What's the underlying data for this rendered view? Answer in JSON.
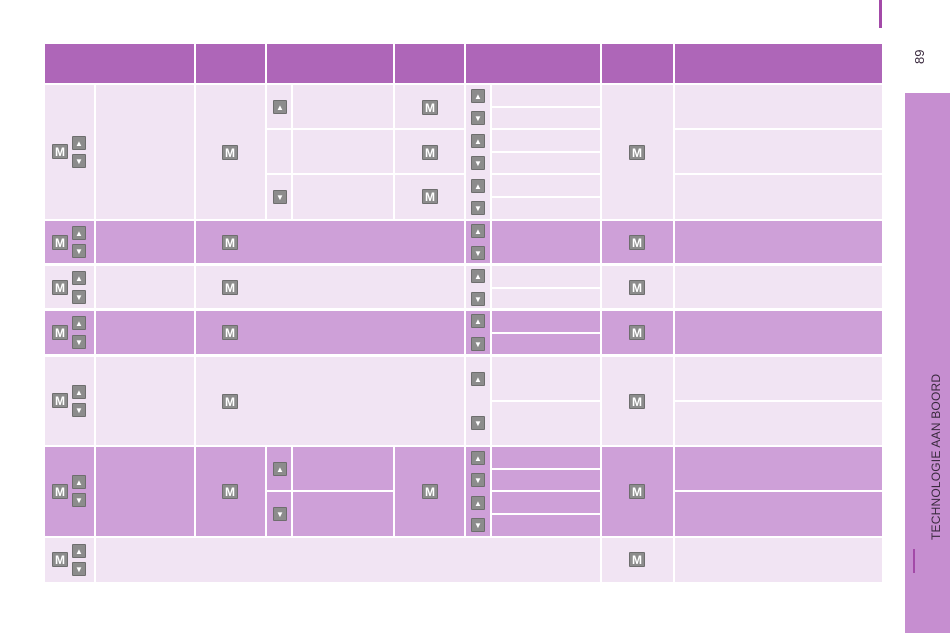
{
  "page": {
    "number": "89",
    "section_title": "TECHNOLOGIE AAN BOORD"
  },
  "keys": {
    "mode": "M",
    "up": "▲",
    "down": "▼"
  },
  "colors": {
    "header": "#ae66b8",
    "row_light": "#f1e4f3",
    "row_dark": "#cea0d8",
    "tab": "#c68ed0",
    "key": "#8c8c8c",
    "accent": "#a34aa8"
  }
}
